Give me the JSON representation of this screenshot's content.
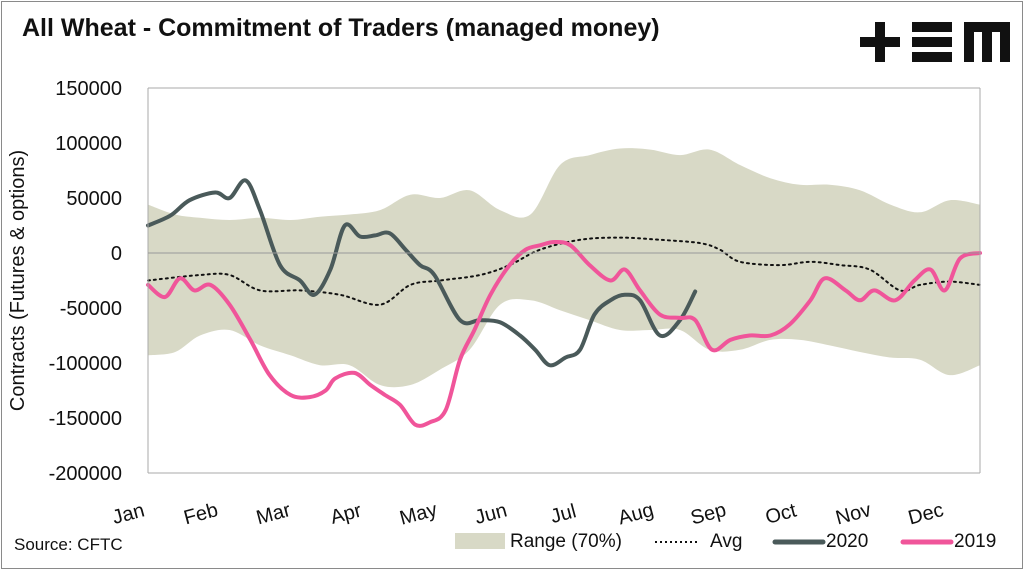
{
  "header": {
    "title": "All Wheat - Commitment of Traders (managed money)",
    "logo_text": "+EM"
  },
  "footer": {
    "source": "Source: CFTC"
  },
  "colors": {
    "range": "#d8d9c6",
    "avg": "#111111",
    "y2020": "#4a5a5a",
    "y2019": "#f0559a"
  },
  "chart_data": {
    "type": "line",
    "title": "All Wheat - Commitment of Traders (managed money)",
    "ylabel": "Contracts (Futures & options)",
    "xlabel": "",
    "ylim": [
      -200000,
      150000
    ],
    "yticks": [
      150000,
      100000,
      50000,
      0,
      -50000,
      -100000,
      -150000,
      -200000
    ],
    "ytick_labels": [
      "150000",
      "100000",
      "50000",
      "0",
      "-50000",
      "-100000",
      "-150000",
      "-200000"
    ],
    "xlim_weeks": [
      0,
      52
    ],
    "months": [
      "Jan",
      "Feb",
      "Mar",
      "Apr",
      "May",
      "Jun",
      "Jul",
      "Aug",
      "Sep",
      "Oct",
      "Nov",
      "Dec"
    ],
    "grid": false,
    "legend_position": "bottom-right",
    "legend": [
      "Range (70%)",
      "Avg",
      "2020",
      "2019"
    ],
    "series": [
      {
        "name": "Range (70%)",
        "type": "band",
        "upper": [
          [
            0,
            44000
          ],
          [
            1.7,
            35000
          ],
          [
            3.25,
            32000
          ],
          [
            5.1,
            30000
          ],
          [
            7,
            32000
          ],
          [
            8.9,
            30000
          ],
          [
            10.75,
            33000
          ],
          [
            12.6,
            35000
          ],
          [
            14.5,
            39000
          ],
          [
            16.4,
            53000
          ],
          [
            18.25,
            50000
          ],
          [
            20.1,
            57000
          ],
          [
            22,
            39000
          ],
          [
            23.9,
            35000
          ],
          [
            25.75,
            80000
          ],
          [
            27.6,
            89000
          ],
          [
            29.5,
            95000
          ],
          [
            31.4,
            94000
          ],
          [
            33.25,
            89000
          ],
          [
            35.1,
            94000
          ],
          [
            37,
            80000
          ],
          [
            38.9,
            68000
          ],
          [
            40.75,
            62000
          ],
          [
            42.6,
            62000
          ],
          [
            44.5,
            57000
          ],
          [
            46.4,
            44000
          ],
          [
            48.25,
            37000
          ],
          [
            50.1,
            48000
          ],
          [
            52,
            44000
          ]
        ],
        "lower": [
          [
            0,
            -93000
          ],
          [
            1.7,
            -90000
          ],
          [
            3.25,
            -75000
          ],
          [
            5.1,
            -70000
          ],
          [
            7,
            -84000
          ],
          [
            8.9,
            -93000
          ],
          [
            10.75,
            -102000
          ],
          [
            12.6,
            -102000
          ],
          [
            14.5,
            -120000
          ],
          [
            16.4,
            -120000
          ],
          [
            18.25,
            -106000
          ],
          [
            20.1,
            -88000
          ],
          [
            22,
            -47000
          ],
          [
            23.9,
            -43000
          ],
          [
            25.75,
            -52000
          ],
          [
            27.6,
            -61000
          ],
          [
            29.5,
            -70000
          ],
          [
            31.4,
            -70000
          ],
          [
            33.25,
            -70000
          ],
          [
            35.1,
            -88000
          ],
          [
            37,
            -88000
          ],
          [
            38.9,
            -79000
          ],
          [
            40.75,
            -79000
          ],
          [
            42.6,
            -84000
          ],
          [
            44.5,
            -90000
          ],
          [
            46.4,
            -95000
          ],
          [
            48.25,
            -97000
          ],
          [
            50.1,
            -111000
          ],
          [
            52,
            -102000
          ]
        ]
      },
      {
        "name": "Avg",
        "type": "dotted",
        "points": [
          [
            0,
            -25000
          ],
          [
            3.25,
            -20000
          ],
          [
            5.1,
            -20000
          ],
          [
            7,
            -34000
          ],
          [
            9.5,
            -34000
          ],
          [
            12,
            -38000
          ],
          [
            14.5,
            -47000
          ],
          [
            16.4,
            -29000
          ],
          [
            18.25,
            -25000
          ],
          [
            20.75,
            -20000
          ],
          [
            22.6,
            -11000
          ],
          [
            24.5,
            3000
          ],
          [
            27,
            12000
          ],
          [
            29.5,
            14000
          ],
          [
            32,
            12000
          ],
          [
            34.5,
            9000
          ],
          [
            35.75,
            3000
          ],
          [
            37,
            -8000
          ],
          [
            39.5,
            -11000
          ],
          [
            41.4,
            -8000
          ],
          [
            43.25,
            -11000
          ],
          [
            45.1,
            -15000
          ],
          [
            47,
            -34000
          ],
          [
            48.25,
            -29000
          ],
          [
            50.1,
            -26000
          ],
          [
            52,
            -29000
          ]
        ]
      },
      {
        "name": "2020",
        "type": "line",
        "points": [
          [
            0,
            25000
          ],
          [
            1.4,
            34000
          ],
          [
            2.6,
            48000
          ],
          [
            4.2,
            55000
          ],
          [
            5.1,
            50000
          ],
          [
            6.1,
            66000
          ],
          [
            7,
            39000
          ],
          [
            8.25,
            -11000
          ],
          [
            9.5,
            -25000
          ],
          [
            10.4,
            -38000
          ],
          [
            11.4,
            -15000
          ],
          [
            12.3,
            25000
          ],
          [
            13.25,
            15000
          ],
          [
            14.2,
            16000
          ],
          [
            15.1,
            18000
          ],
          [
            16.1,
            3000
          ],
          [
            17,
            -11000
          ],
          [
            17.9,
            -20000
          ],
          [
            19.5,
            -61000
          ],
          [
            20.75,
            -61000
          ],
          [
            22,
            -63000
          ],
          [
            23.25,
            -75000
          ],
          [
            24.2,
            -88000
          ],
          [
            25.1,
            -102000
          ],
          [
            26.1,
            -95000
          ],
          [
            27,
            -88000
          ],
          [
            27.9,
            -56000
          ],
          [
            28.9,
            -43000
          ],
          [
            29.8,
            -38000
          ],
          [
            30.75,
            -43000
          ],
          [
            32,
            -75000
          ],
          [
            33.25,
            -61000
          ],
          [
            34.2,
            -35000
          ]
        ]
      },
      {
        "name": "2019",
        "type": "line",
        "points": [
          [
            0,
            -29000
          ],
          [
            1.06,
            -40000
          ],
          [
            2,
            -23000
          ],
          [
            2.9,
            -34000
          ],
          [
            3.9,
            -29000
          ],
          [
            5.1,
            -47000
          ],
          [
            6.4,
            -79000
          ],
          [
            7.6,
            -111000
          ],
          [
            8.9,
            -129000
          ],
          [
            10.1,
            -131000
          ],
          [
            11.1,
            -125000
          ],
          [
            11.7,
            -114000
          ],
          [
            12.9,
            -109000
          ],
          [
            13.9,
            -120000
          ],
          [
            14.8,
            -129000
          ],
          [
            15.75,
            -138000
          ],
          [
            16.7,
            -156000
          ],
          [
            17.6,
            -154000
          ],
          [
            18.6,
            -143000
          ],
          [
            19.5,
            -97000
          ],
          [
            20.4,
            -70000
          ],
          [
            21.4,
            -38000
          ],
          [
            22.6,
            -11000
          ],
          [
            23.6,
            3000
          ],
          [
            24.5,
            7000
          ],
          [
            25.4,
            10000
          ],
          [
            26.4,
            7000
          ],
          [
            27.6,
            -11000
          ],
          [
            28.9,
            -25000
          ],
          [
            29.8,
            -15000
          ],
          [
            30.75,
            -34000
          ],
          [
            32,
            -56000
          ],
          [
            33.25,
            -59000
          ],
          [
            34.2,
            -61000
          ],
          [
            35.25,
            -88000
          ],
          [
            36.4,
            -79000
          ],
          [
            37.6,
            -75000
          ],
          [
            38.9,
            -75000
          ],
          [
            40.1,
            -65000
          ],
          [
            41.4,
            -43000
          ],
          [
            42.3,
            -23000
          ],
          [
            43.6,
            -34000
          ],
          [
            44.5,
            -43000
          ],
          [
            45.4,
            -34000
          ],
          [
            46.7,
            -43000
          ],
          [
            47.9,
            -25000
          ],
          [
            48.9,
            -15000
          ],
          [
            49.8,
            -34000
          ],
          [
            50.75,
            -5000
          ],
          [
            52,
            0
          ]
        ]
      }
    ]
  }
}
